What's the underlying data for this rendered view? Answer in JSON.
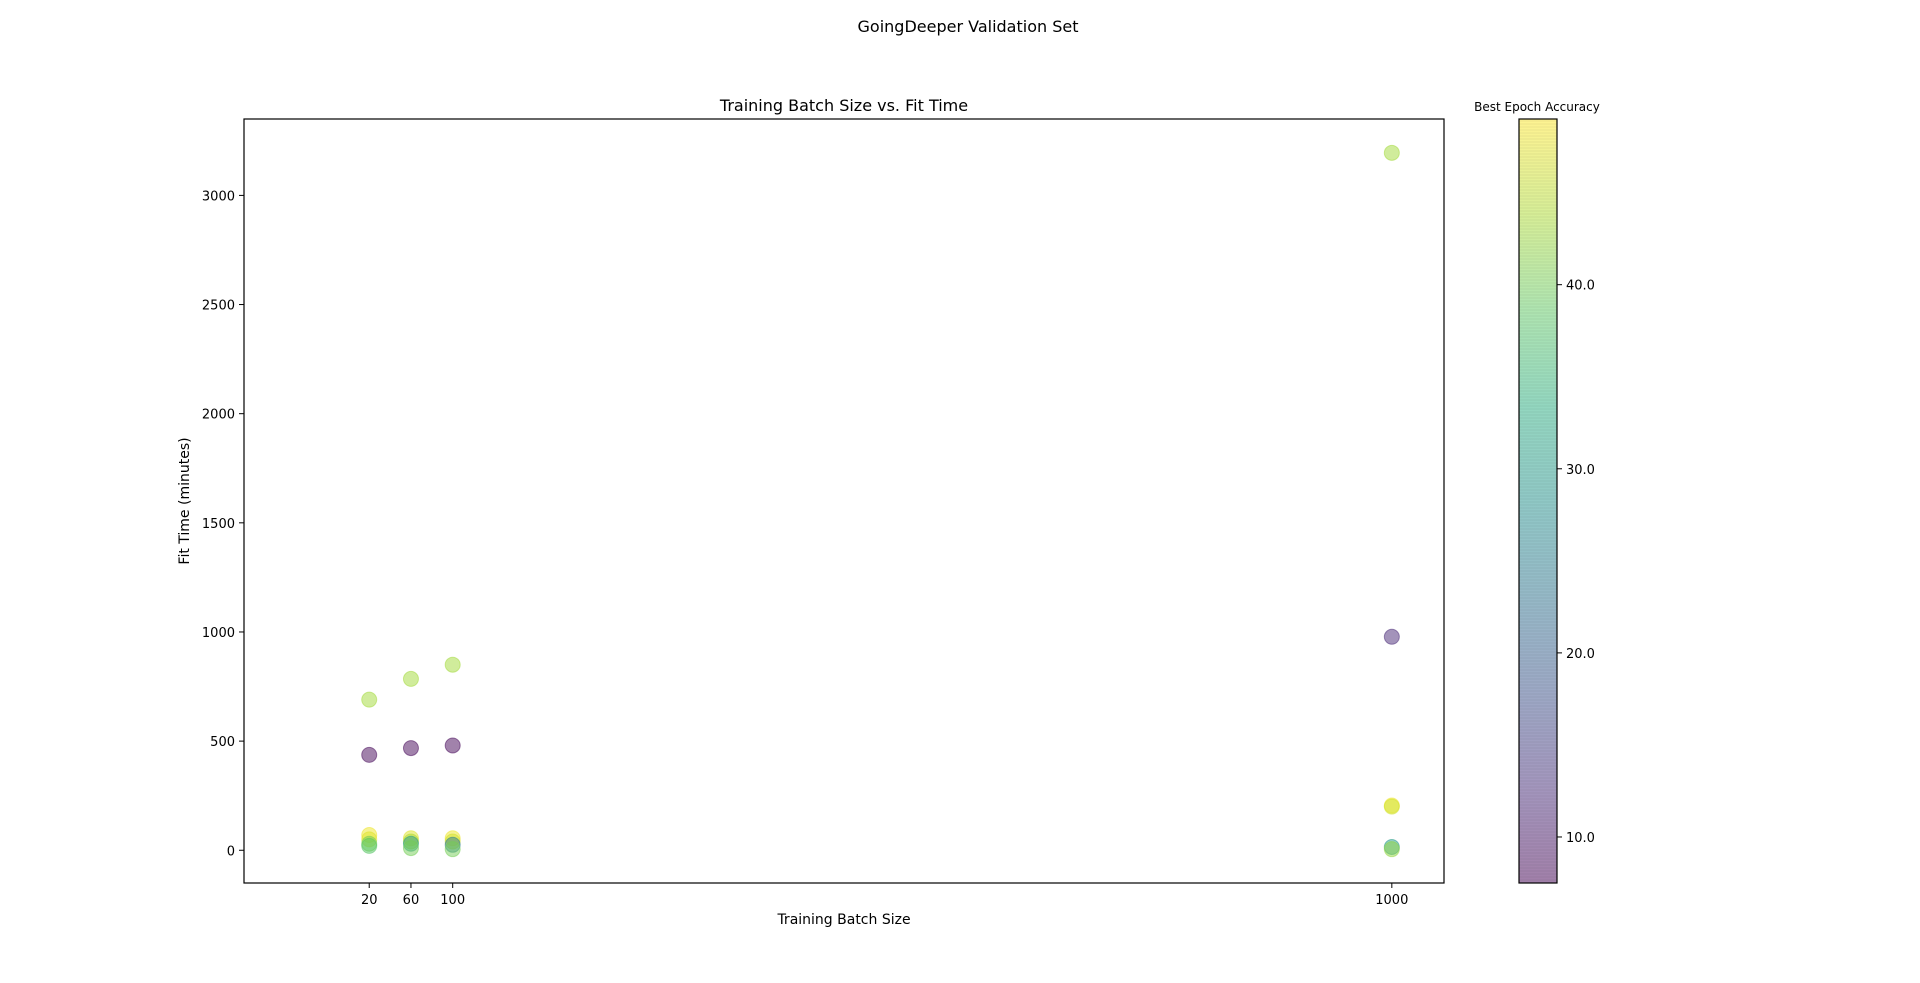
{
  "figure_title": "GoingDeeper Validation Set",
  "chart_data": {
    "type": "scatter",
    "title": "Training Batch Size vs. Fit Time",
    "xlabel": "Training Batch Size",
    "ylabel": "Fit Time (minutes)",
    "xlim": [
      -100,
      1050
    ],
    "ylim": [
      -150,
      3350
    ],
    "xticks": [
      20,
      60,
      100,
      1000
    ],
    "yticks": [
      0,
      500,
      1000,
      1500,
      2000,
      2500,
      3000
    ],
    "grid": false,
    "colorbar": {
      "label": "Best Epoch Accuracy",
      "range": [
        7.5,
        49
      ],
      "ticks": [
        10.0,
        20.0,
        30.0,
        40.0
      ],
      "colormap": "viridis",
      "alpha": 0.5
    },
    "points": [
      {
        "x": 20,
        "y": 690,
        "c": 43
      },
      {
        "x": 20,
        "y": 437,
        "c": 8
      },
      {
        "x": 20,
        "y": 70,
        "c": 48
      },
      {
        "x": 20,
        "y": 50,
        "c": 47
      },
      {
        "x": 20,
        "y": 30,
        "c": 40
      },
      {
        "x": 20,
        "y": 20,
        "c": 38
      },
      {
        "x": 60,
        "y": 785,
        "c": 43
      },
      {
        "x": 60,
        "y": 468,
        "c": 8
      },
      {
        "x": 60,
        "y": 55,
        "c": 47
      },
      {
        "x": 60,
        "y": 40,
        "c": 44
      },
      {
        "x": 60,
        "y": 30,
        "c": 30
      },
      {
        "x": 60,
        "y": 10,
        "c": 40
      },
      {
        "x": 100,
        "y": 850,
        "c": 43
      },
      {
        "x": 100,
        "y": 480,
        "c": 8
      },
      {
        "x": 100,
        "y": 55,
        "c": 48
      },
      {
        "x": 100,
        "y": 40,
        "c": 46
      },
      {
        "x": 100,
        "y": 25,
        "c": 25
      },
      {
        "x": 100,
        "y": 5,
        "c": 40
      },
      {
        "x": 1000,
        "y": 3195,
        "c": 43
      },
      {
        "x": 1000,
        "y": 978,
        "c": 12
      },
      {
        "x": 1000,
        "y": 205,
        "c": 48
      },
      {
        "x": 1000,
        "y": 200,
        "c": 46
      },
      {
        "x": 1000,
        "y": 15,
        "c": 30
      },
      {
        "x": 1000,
        "y": 5,
        "c": 42
      }
    ]
  }
}
